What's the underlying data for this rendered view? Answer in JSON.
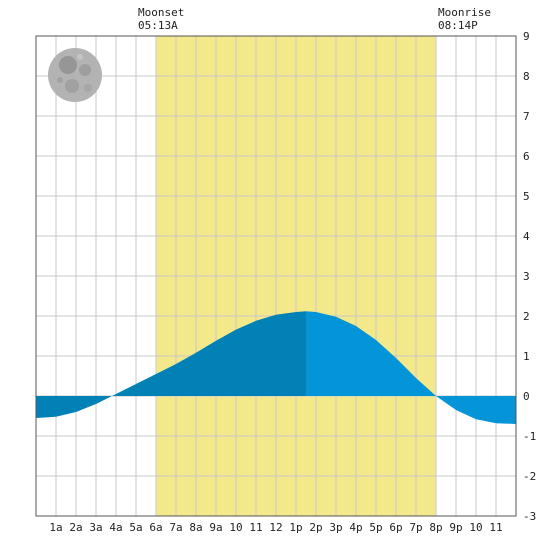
{
  "chart_data": {
    "type": "area",
    "title": "",
    "xlabel": "",
    "ylabel": "",
    "x_tick_labels": [
      "1a",
      "2a",
      "3a",
      "4a",
      "5a",
      "6a",
      "7a",
      "8a",
      "9a",
      "10",
      "11",
      "12",
      "1p",
      "2p",
      "3p",
      "4p",
      "5p",
      "6p",
      "7p",
      "8p",
      "9p",
      "10",
      "11"
    ],
    "y_ticks": [
      9,
      8,
      7,
      6,
      5,
      4,
      3,
      2,
      1,
      0,
      -1,
      -2,
      -3
    ],
    "xlim": [
      0,
      24
    ],
    "ylim": [
      -3,
      9
    ],
    "grid": true,
    "daylight": {
      "start_hour": 6,
      "end_hour": 20
    },
    "moonset": {
      "label": "Moonset",
      "time": "05:13A",
      "hour": 5.22
    },
    "moonrise": {
      "label": "Moonrise",
      "time": "08:14P",
      "hour": 20.23
    },
    "moon_phase": "full",
    "split_hour": 13.5,
    "series": [
      {
        "hours": [
          0,
          1,
          2,
          3,
          4,
          5,
          6,
          7,
          8,
          9,
          10,
          11,
          12,
          13,
          13.5,
          14,
          15,
          16,
          17,
          18,
          19,
          20,
          21,
          22,
          23,
          24
        ],
        "values": [
          -0.55,
          -0.52,
          -0.4,
          -0.2,
          0.05,
          0.3,
          0.55,
          0.8,
          1.08,
          1.38,
          1.66,
          1.88,
          2.03,
          2.1,
          2.12,
          2.1,
          1.98,
          1.75,
          1.4,
          0.95,
          0.45,
          0.0,
          -0.35,
          -0.58,
          -0.68,
          -0.7
        ]
      }
    ],
    "colors": {
      "daylight": "#f3e98b",
      "tide_dark": "#0281b7",
      "tide_light": "#0495d8",
      "grid": "#c8c8c8",
      "moon": "#b3b3b3"
    }
  }
}
